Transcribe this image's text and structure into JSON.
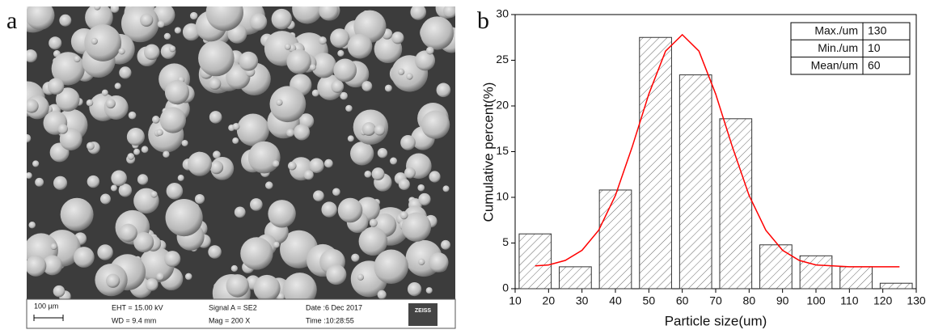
{
  "image": {
    "label": "a",
    "scale": "100 µm",
    "eht": "EHT = 15.00 kV",
    "wd": "WD = 9.4 mm",
    "signal": "Signal A = SE2",
    "mag": "Mag = 200 X",
    "date": "Date :6 Dec 2017",
    "time": "Time :10:28:55",
    "logo": "ZEISS"
  },
  "chart_data": {
    "type": "bar",
    "label": "b",
    "x_label": "Particle size(um)",
    "y_label": "Cumulative percent(%)",
    "x": [
      16,
      28,
      40,
      52,
      64,
      76,
      88,
      100,
      112,
      124
    ],
    "values": [
      6.0,
      2.4,
      10.8,
      27.5,
      23.4,
      18.6,
      4.8,
      3.6,
      2.4,
      0.6
    ],
    "color": "#333333",
    "curve": {
      "type": "line",
      "color": "#ff0000",
      "x": [
        16,
        20,
        25,
        30,
        35,
        40,
        45,
        50,
        55,
        60,
        65,
        70,
        75,
        80,
        85,
        90,
        95,
        100,
        105,
        110,
        115,
        120,
        125
      ],
      "values": [
        2.5,
        2.6,
        3.1,
        4.2,
        6.4,
        10.2,
        15.5,
        21.3,
        26.0,
        27.8,
        26.0,
        21.3,
        15.5,
        10.2,
        6.4,
        4.2,
        3.1,
        2.6,
        2.5,
        2.4,
        2.4,
        2.4,
        2.4
      ]
    },
    "xlim": [
      10,
      130
    ],
    "xticks": [
      10,
      20,
      30,
      40,
      50,
      60,
      70,
      80,
      90,
      100,
      110,
      120,
      130
    ],
    "ylim": [
      0,
      30
    ],
    "yticks": [
      0,
      5,
      10,
      15,
      20,
      25,
      30
    ],
    "stats": [
      {
        "label": "Max./um",
        "value": 130
      },
      {
        "label": "Min./um",
        "value": 10
      },
      {
        "label": "Mean/um",
        "value": 60
      }
    ]
  }
}
